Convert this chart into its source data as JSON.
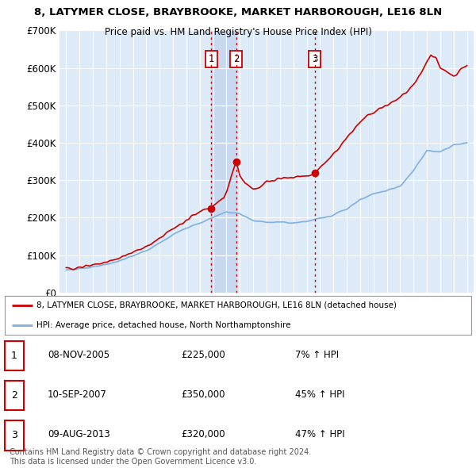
{
  "title1": "8, LATYMER CLOSE, BRAYBROOKE, MARKET HARBOROUGH, LE16 8LN",
  "title2": "Price paid vs. HM Land Registry's House Price Index (HPI)",
  "ylim": [
    0,
    700000
  ],
  "yticks": [
    0,
    100000,
    200000,
    300000,
    400000,
    500000,
    600000,
    700000
  ],
  "ytick_labels": [
    "£0",
    "£100K",
    "£200K",
    "£300K",
    "£400K",
    "£500K",
    "£600K",
    "£700K"
  ],
  "sale_dates": [
    2005.87,
    2007.72,
    2013.6
  ],
  "sale_prices": [
    225000,
    350000,
    320000
  ],
  "sale_labels": [
    "1",
    "2",
    "3"
  ],
  "hpi_color": "#7fb0e0",
  "price_color": "#cc0000",
  "bg_color": "#ddeaf7",
  "highlight_color": "#c8d8ee",
  "legend_line1": "8, LATYMER CLOSE, BRAYBROOKE, MARKET HARBOROUGH, LE16 8LN (detached house)",
  "legend_line2": "HPI: Average price, detached house, North Northamptonshire",
  "table": [
    {
      "num": "1",
      "date": "08-NOV-2005",
      "price": "£225,000",
      "hpi": "7% ↑ HPI"
    },
    {
      "num": "2",
      "date": "10-SEP-2007",
      "price": "£350,000",
      "hpi": "45% ↑ HPI"
    },
    {
      "num": "3",
      "date": "09-AUG-2013",
      "price": "£320,000",
      "hpi": "47% ↑ HPI"
    }
  ],
  "footnote": "Contains HM Land Registry data © Crown copyright and database right 2024.\nThis data is licensed under the Open Government Licence v3.0.",
  "vline_color": "#cc0000"
}
